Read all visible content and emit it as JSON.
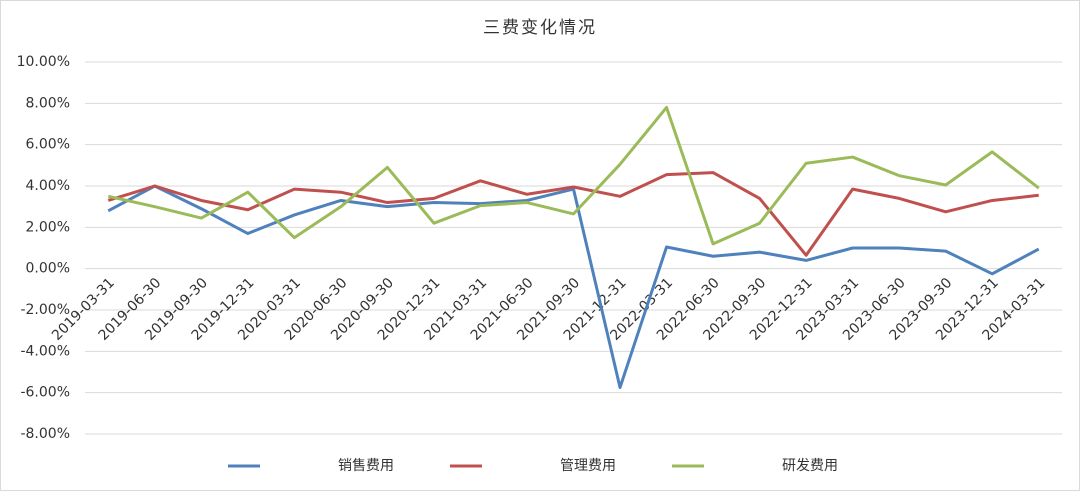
{
  "chart_data": {
    "type": "line",
    "title": "三费变化情况",
    "categories": [
      "2019-03-31",
      "2019-06-30",
      "2019-09-30",
      "2019-12-31",
      "2020-03-31",
      "2020-06-30",
      "2020-09-30",
      "2020-12-31",
      "2021-03-31",
      "2021-06-30",
      "2021-09-30",
      "2021-12-31",
      "2022-03-31",
      "2022-06-30",
      "2022-09-30",
      "2022-12-31",
      "2023-03-31",
      "2023-06-30",
      "2023-09-30",
      "2023-12-31",
      "2024-03-31"
    ],
    "series": [
      {
        "name": "销售费用",
        "color": "#4f81bd",
        "values": [
          2.8,
          4.0,
          2.9,
          1.7,
          2.6,
          3.3,
          3.0,
          3.2,
          3.15,
          3.3,
          3.85,
          -5.75,
          1.05,
          0.6,
          0.8,
          0.4,
          1.0,
          1.0,
          0.85,
          -0.25,
          0.95
        ]
      },
      {
        "name": "管理费用",
        "color": "#c0504d",
        "values": [
          3.3,
          4.0,
          3.3,
          2.85,
          3.85,
          3.7,
          3.2,
          3.4,
          4.25,
          3.6,
          3.95,
          3.5,
          4.55,
          4.65,
          3.4,
          0.65,
          3.85,
          3.4,
          2.75,
          3.3,
          3.55
        ]
      },
      {
        "name": "研发费用",
        "color": "#9bbb59",
        "values": [
          3.5,
          3.0,
          2.45,
          3.7,
          1.5,
          3.0,
          4.9,
          2.2,
          3.05,
          3.2,
          2.65,
          5.05,
          7.8,
          1.2,
          2.2,
          5.1,
          5.4,
          4.5,
          4.05,
          5.65,
          3.9
        ]
      }
    ],
    "ylim": [
      -8,
      10
    ],
    "yticks": [
      {
        "value": -8,
        "label": "-8.00%"
      },
      {
        "value": -6,
        "label": "-6.00%"
      },
      {
        "value": -4,
        "label": "-4.00%"
      },
      {
        "value": -2,
        "label": "-2.00%"
      },
      {
        "value": 0,
        "label": "0.00%"
      },
      {
        "value": 2,
        "label": "2.00%"
      },
      {
        "value": 4,
        "label": "4.00%"
      },
      {
        "value": 6,
        "label": "6.00%"
      },
      {
        "value": 8,
        "label": "8.00%"
      },
      {
        "value": 10,
        "label": "10.00%"
      }
    ],
    "grid": true,
    "legend": "bottom"
  }
}
